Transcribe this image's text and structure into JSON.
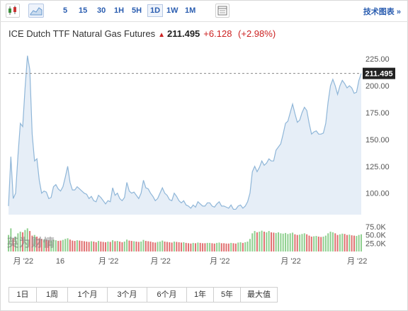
{
  "toolbar": {
    "periods": [
      {
        "label": "5",
        "active": false
      },
      {
        "label": "15",
        "active": false
      },
      {
        "label": "30",
        "active": false
      },
      {
        "label": "1H",
        "active": false
      },
      {
        "label": "5H",
        "active": false
      },
      {
        "label": "1D",
        "active": true
      },
      {
        "label": "1W",
        "active": false
      },
      {
        "label": "1M",
        "active": false
      }
    ],
    "tech_chart_label": "技术图表 »"
  },
  "quote": {
    "name": "ICE Dutch TTF Natural Gas Futures",
    "price": "211.495",
    "change": "+6.128",
    "change_pct": "(+2.98%)"
  },
  "watermark": "英为财情",
  "ranges": [
    "1日",
    "1周",
    "1个月",
    "3个月",
    "6个月",
    "1年",
    "5年",
    "最大值"
  ],
  "colors": {
    "line": "#8fb6d8",
    "area": "#e6eef7",
    "up_vol": "#8fd08f",
    "down_vol": "#e07070",
    "accent_red": "#cc2222",
    "price_tag": "#222222"
  },
  "chart_data": {
    "type": "area",
    "price_label": "211.495",
    "ylim": [
      80,
      235
    ],
    "y_ticks": [
      "225.00",
      "200.00",
      "175.00",
      "150.00",
      "125.00",
      "100.00"
    ],
    "y_tick_values": [
      225,
      200,
      175,
      150,
      125,
      100
    ],
    "x_ticks": [
      "月 '22",
      "16",
      "月 '22",
      "月 '22",
      "月 '22",
      "月 '22",
      "月 '22"
    ],
    "x_tick_index": [
      2,
      20,
      38,
      60,
      85,
      115,
      143
    ],
    "series": [
      {
        "values": [
          88,
          134,
          95,
          100,
          135,
          165,
          162,
          198,
          228,
          215,
          155,
          130,
          132,
          112,
          100,
          102,
          101,
          95,
          96,
          106,
          108,
          104,
          102,
          106,
          115,
          125,
          110,
          103,
          103,
          106,
          104,
          102,
          100,
          99,
          95,
          97,
          93,
          92,
          98,
          96,
          93,
          90,
          93,
          92,
          105,
          98,
          100,
          95,
          93,
          96,
          110,
          102,
          100,
          101,
          98,
          95,
          100,
          112,
          105,
          104,
          100,
          97,
          93,
          95,
          100,
          105,
          100,
          98,
          94,
          93,
          100,
          97,
          93,
          91,
          93,
          89,
          88,
          86,
          89,
          87,
          92,
          90,
          88,
          88,
          91,
          91,
          88,
          87,
          90,
          92,
          88,
          88,
          87,
          86,
          89,
          85,
          85,
          88,
          89,
          86,
          88,
          92,
          100,
          120,
          125,
          120,
          124,
          130,
          126,
          128,
          132,
          130,
          130,
          140,
          143,
          146,
          155,
          165,
          167,
          175,
          183,
          174,
          166,
          168,
          175,
          180,
          177,
          165,
          155,
          157,
          158,
          155,
          155,
          156,
          165,
          185,
          200,
          206,
          200,
          192,
          200,
          205,
          202,
          198,
          200,
          198,
          193,
          194,
          205,
          211.5
        ]
      }
    ],
    "volume": {
      "ylim": [
        0,
        75
      ],
      "y_ticks": [
        "75.0K",
        "50.0K",
        "25.0K"
      ],
      "y_tick_values": [
        75,
        50,
        25
      ],
      "values": [
        50,
        70,
        40,
        45,
        55,
        60,
        58,
        65,
        70,
        62,
        48,
        50,
        45,
        40,
        38,
        36,
        35,
        34,
        33,
        36,
        34,
        32,
        33,
        35,
        38,
        40,
        36,
        33,
        32,
        34,
        33,
        32,
        31,
        30,
        29,
        31,
        30,
        28,
        32,
        30,
        29,
        28,
        30,
        29,
        34,
        31,
        32,
        30,
        28,
        30,
        36,
        33,
        32,
        31,
        30,
        29,
        30,
        35,
        32,
        31,
        30,
        28,
        27,
        29,
        30,
        33,
        30,
        29,
        28,
        27,
        30,
        29,
        28,
        27,
        28,
        26,
        25,
        24,
        26,
        25,
        27,
        26,
        25,
        25,
        26,
        26,
        25,
        24,
        26,
        27,
        25,
        25,
        24,
        24,
        26,
        25,
        24,
        27,
        28,
        26,
        28,
        30,
        38,
        55,
        62,
        58,
        60,
        63,
        60,
        58,
        62,
        58,
        57,
        56,
        58,
        55,
        54,
        56,
        53,
        55,
        57,
        52,
        50,
        51,
        53,
        55,
        52,
        48,
        45,
        46,
        47,
        45,
        44,
        45,
        48,
        55,
        60,
        58,
        55,
        50,
        52,
        54,
        53,
        50,
        51,
        49,
        48,
        47,
        50,
        52
      ],
      "up": [
        1,
        1,
        0,
        1,
        1,
        1,
        0,
        1,
        1,
        0,
        0,
        1,
        0,
        0,
        0,
        1,
        0,
        0,
        1,
        1,
        1,
        0,
        0,
        1,
        1,
        1,
        0,
        0,
        0,
        1,
        0,
        0,
        0,
        0,
        0,
        1,
        0,
        0,
        1,
        0,
        0,
        0,
        1,
        0,
        1,
        0,
        1,
        0,
        0,
        1,
        1,
        0,
        0,
        1,
        0,
        0,
        1,
        1,
        0,
        0,
        0,
        0,
        0,
        1,
        1,
        1,
        0,
        0,
        0,
        0,
        1,
        0,
        0,
        0,
        1,
        0,
        0,
        0,
        1,
        0,
        1,
        0,
        0,
        0,
        1,
        1,
        0,
        0,
        1,
        1,
        0,
        0,
        0,
        0,
        1,
        0,
        0,
        1,
        1,
        0,
        1,
        1,
        1,
        1,
        1,
        0,
        1,
        1,
        0,
        1,
        1,
        0,
        0,
        1,
        1,
        1,
        1,
        1,
        1,
        1,
        1,
        0,
        0,
        1,
        1,
        1,
        0,
        0,
        0,
        1,
        1,
        0,
        0,
        1,
        1,
        1,
        1,
        1,
        0,
        0,
        1,
        1,
        0,
        0,
        1,
        0,
        0,
        1,
        1,
        1
      ]
    }
  }
}
